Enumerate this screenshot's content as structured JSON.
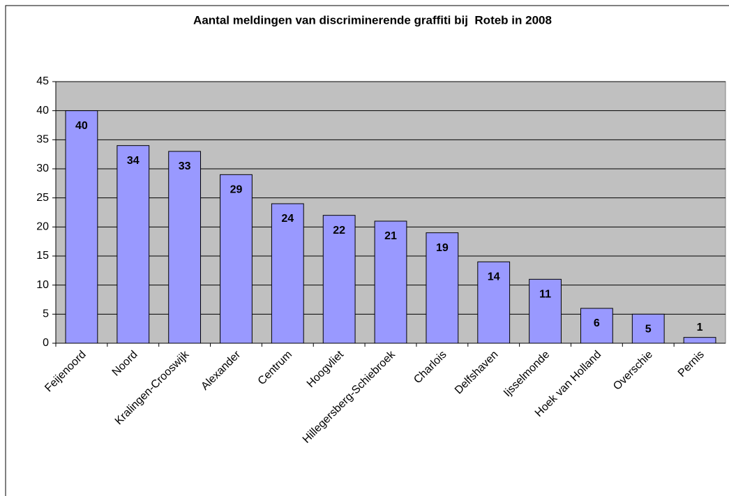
{
  "chart_data": {
    "type": "bar",
    "title": "Aantal meldingen van discriminerende graffiti bij  Roteb in 2008",
    "categories": [
      "Feijenoord",
      "Noord",
      "Kralingen-Crooswijk",
      "Alexander",
      "Centrum",
      "Hoogvliet",
      "Hillegersberg-Schiebroek",
      "Charlois",
      "Delfshaven",
      "Ijsselmonde",
      "Hoek van Holland",
      "Overschie",
      "Pernis"
    ],
    "values": [
      40,
      34,
      33,
      29,
      24,
      22,
      21,
      19,
      14,
      11,
      6,
      5,
      1
    ],
    "color": "#9999ff",
    "ylim": [
      0,
      45
    ],
    "yticks": [
      0,
      5,
      10,
      15,
      20,
      25,
      30,
      35,
      40,
      45
    ],
    "grid": true
  }
}
